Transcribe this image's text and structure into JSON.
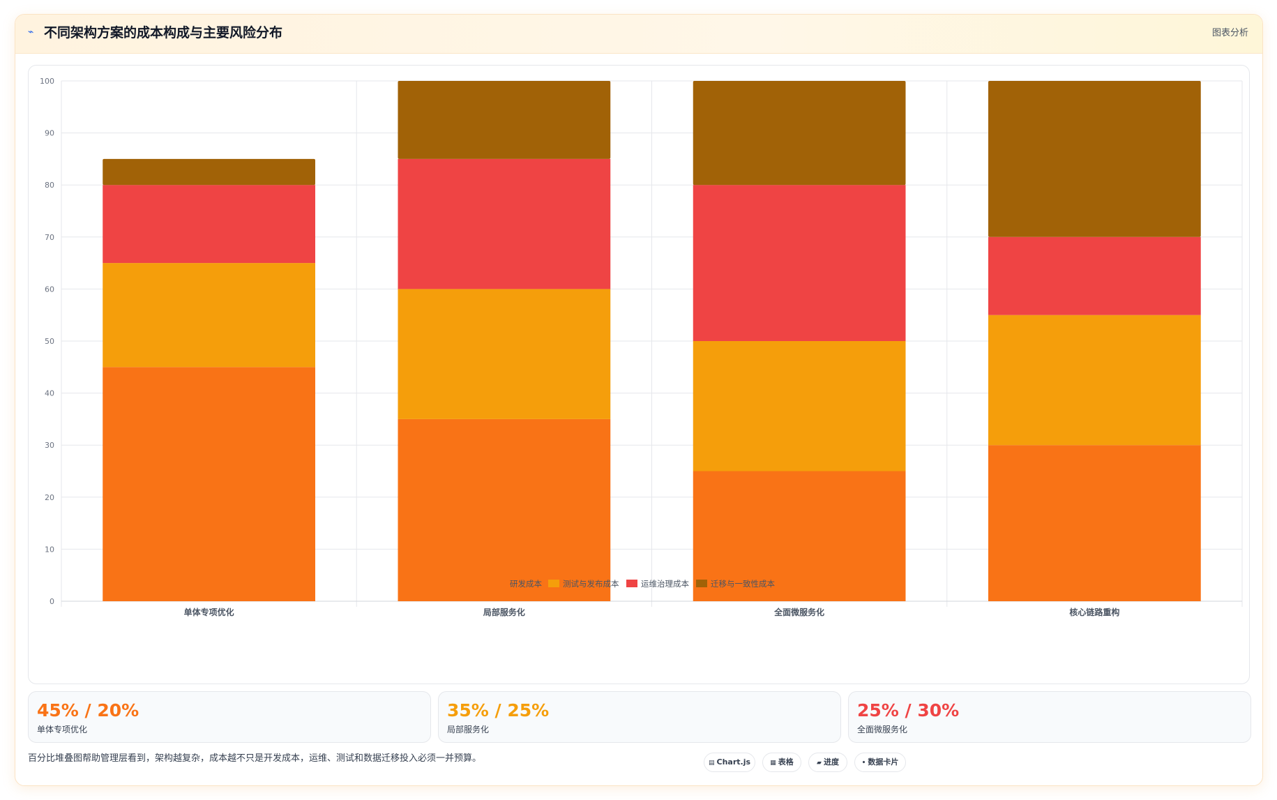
{
  "header": {
    "icon": "trend-line-icon",
    "title": "不同架构方案的成本构成与主要风险分布",
    "link": "图表分析"
  },
  "chart_data": {
    "type": "bar",
    "stacked": true,
    "categories": [
      "单体专项优化",
      "局部服务化",
      "全面微服务化",
      "核心链路重构"
    ],
    "series": [
      {
        "name": "研发成本",
        "color": "#f97316",
        "values": [
          45,
          35,
          25,
          30
        ]
      },
      {
        "name": "测试与发布成本",
        "color": "#f59e0b",
        "values": [
          20,
          25,
          25,
          25
        ]
      },
      {
        "name": "运维治理成本",
        "color": "#ef4444",
        "values": [
          15,
          25,
          30,
          15
        ]
      },
      {
        "name": "迁移与一致性成本",
        "color": "#a16207",
        "values": [
          5,
          15,
          20,
          30
        ]
      }
    ],
    "ylim": [
      0,
      100
    ],
    "yticks": [
      0,
      10,
      20,
      30,
      40,
      50,
      60,
      70,
      80,
      90,
      100
    ],
    "grid": true,
    "legend": "bottom"
  },
  "stats": [
    {
      "value": "45% / 20%",
      "label": "单体专项优化",
      "color": "#f97316"
    },
    {
      "value": "35% / 25%",
      "label": "局部服务化",
      "color": "#f59e0b"
    },
    {
      "value": "25% / 30%",
      "label": "全面微服务化",
      "color": "#ef4444"
    }
  ],
  "footer": {
    "note": "百分比堆叠图帮助管理层看到，架构越复杂，成本越不只是开发成本，运维、测试和数据迁移投入必须一并预算。",
    "pills": [
      {
        "icon": "chart-icon",
        "label": "Chart.js"
      },
      {
        "icon": "table-icon",
        "label": "表格"
      },
      {
        "icon": "progress-icon",
        "label": "进度"
      },
      {
        "icon": "card-icon",
        "label": "数据卡片"
      }
    ]
  }
}
